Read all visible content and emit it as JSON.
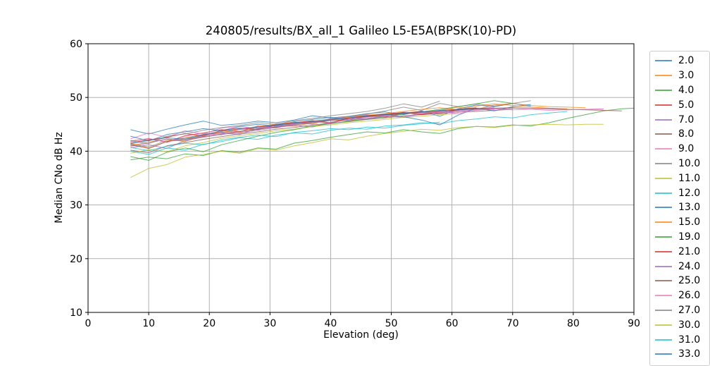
{
  "chart_data": {
    "type": "line",
    "title": "240805/results/BX_all_1 Galileo L5-E5A(BPSK(10)-PD)",
    "xlabel": "Elevation (deg)",
    "ylabel": "Median CNo dB Hz",
    "xlim": [
      0,
      90
    ],
    "ylim": [
      10,
      60
    ],
    "x_ticks": [
      0,
      10,
      20,
      30,
      40,
      50,
      60,
      70,
      80,
      90
    ],
    "y_ticks": [
      10,
      20,
      30,
      40,
      50,
      60
    ],
    "grid": true,
    "grid_color": "#b0b0b0",
    "spine_color": "#000000",
    "line_alpha": 0.75,
    "line_width": 1,
    "legend_position": "right-outside",
    "x": [
      7,
      10,
      13,
      16,
      19,
      22,
      25,
      28,
      31,
      34,
      37,
      40,
      43,
      46,
      49,
      52,
      55,
      58,
      61,
      64,
      67,
      70,
      73,
      76,
      79,
      82,
      85,
      88,
      90
    ],
    "series": [
      {
        "name": "2.0",
        "color": "#1f77b4",
        "y": [
          44.0,
          43.2,
          44.1,
          44.9,
          45.6,
          44.8,
          45.1,
          45.6,
          45.3,
          45.8,
          46.6,
          46.2,
          46.5,
          47.0,
          47.3,
          46.8,
          47.5,
          46.5,
          47.9,
          48.6,
          48.3,
          48.9,
          48.4
        ]
      },
      {
        "name": "3.0",
        "color": "#ff7f0e",
        "y": [
          41.5,
          40.6,
          41.8,
          42.5,
          43.1,
          43.6,
          43.3,
          44.5,
          44.9,
          44.6,
          45.3,
          45.9,
          45.6,
          46.4,
          46.8,
          47.2,
          46.9,
          47.6,
          48.2,
          47.8,
          48.6,
          48.9,
          48.5,
          48.3,
          48.2,
          48.1
        ]
      },
      {
        "name": "4.0",
        "color": "#2ca02c",
        "y": [
          38.4,
          38.9,
          38.6,
          39.5,
          39.2,
          40.1,
          39.8,
          40.6,
          40.4,
          41.5,
          42.0,
          42.6,
          43.1,
          43.6,
          43.4,
          44.0,
          43.6,
          43.3,
          44.2,
          44.6,
          44.5,
          44.9,
          44.7,
          45.3,
          46.1,
          46.8,
          47.5,
          47.9,
          48.0
        ]
      },
      {
        "name": "5.0",
        "color": "#d62728",
        "y": [
          41.9,
          42.3,
          41.7,
          42.9,
          43.4,
          44.0,
          43.6,
          44.7,
          44.4,
          45.2,
          45.7,
          45.3,
          46.2,
          46.6,
          46.3,
          47.1,
          47.4,
          47.0,
          47.8,
          48.1
        ]
      },
      {
        "name": "7.0",
        "color": "#9467bd",
        "y": [
          40.6,
          41.2,
          40.5,
          42.0,
          42.6,
          43.1,
          43.5,
          43.9,
          44.4,
          44.8,
          44.5,
          45.4,
          45.8,
          46.1,
          46.5,
          46.3,
          46.9,
          47.2,
          47.5,
          47.7,
          47.9,
          48.1
        ]
      },
      {
        "name": "8.0",
        "color": "#8c564b",
        "y": [
          40.2,
          39.7,
          41.0,
          41.6,
          42.2,
          42.7,
          43.2,
          43.6,
          44.1,
          44.4,
          44.9,
          45.2,
          45.5,
          45.9,
          46.2,
          46.6,
          46.8,
          47.0,
          47.3,
          47.4,
          47.6,
          47.8
        ]
      },
      {
        "name": "9.0",
        "color": "#e377c2",
        "y": [
          42.3,
          43.4,
          42.6,
          43.8,
          43.2,
          44.3,
          44.6,
          44.2,
          45.1,
          45.4,
          45.0,
          46.1,
          46.4,
          46.8,
          46.5,
          47.3,
          47.0,
          47.5,
          47.2,
          47.9,
          47.6,
          48.0,
          47.8,
          47.9,
          47.7,
          47.8,
          47.8
        ]
      },
      {
        "name": "10.0",
        "color": "#7f7f7f",
        "y": [
          41.3,
          40.8,
          42.0,
          42.4,
          43.0,
          43.4,
          44.0,
          44.3,
          44.8,
          45.1,
          45.6,
          46.0,
          46.4,
          46.9,
          47.5,
          48.2,
          47.6,
          48.9,
          48.3,
          48.8,
          48.4,
          48.9,
          49.4
        ]
      },
      {
        "name": "11.0",
        "color": "#bcbd22",
        "y": [
          39.6,
          40.3,
          39.9,
          41.0,
          41.6,
          42.4,
          42.9,
          43.3,
          43.8,
          44.1,
          44.6,
          44.9,
          45.3,
          45.6,
          45.9,
          46.3,
          46.5,
          46.8,
          47.0
        ]
      },
      {
        "name": "12.0",
        "color": "#17becf",
        "y": [
          40.0,
          39.4,
          40.6,
          40.2,
          41.3,
          41.8,
          42.5,
          42.2,
          43.0,
          43.4,
          43.2,
          43.9,
          44.3,
          44.1,
          44.7,
          44.9,
          45.3,
          45.1,
          45.7,
          46.0,
          46.4,
          46.2,
          46.8,
          47.1,
          47.4
        ]
      },
      {
        "name": "13.0",
        "color": "#1f77b4",
        "y": [
          42.8,
          41.9,
          43.1,
          43.6,
          44.2,
          43.8,
          44.6,
          45.0,
          44.7,
          45.5,
          45.9,
          46.3,
          45.8,
          46.6,
          46.9,
          46.4,
          45.8,
          44.9,
          46.7,
          48.0,
          47.5,
          48.3,
          48.7
        ]
      },
      {
        "name": "15.0",
        "color": "#ff7f0e",
        "y": [
          41.0,
          41.7,
          42.2,
          41.8,
          42.9,
          43.5,
          44.1,
          44.6,
          45.0,
          45.4,
          45.1,
          45.9,
          46.3,
          46.7,
          47.0,
          47.4,
          47.8,
          48.1,
          47.7,
          48.4,
          48.8,
          48.5,
          48.2,
          48.0,
          47.9
        ]
      },
      {
        "name": "19.0",
        "color": "#2ca02c",
        "y": [
          39.0,
          38.3,
          39.8,
          40.6,
          39.9,
          41.2,
          42.0,
          42.8,
          43.5,
          44.0,
          44.7,
          45.1,
          45.6,
          46.0,
          46.4,
          46.9,
          47.3,
          47.8,
          48.3,
          48.8,
          49.4,
          48.9
        ]
      },
      {
        "name": "21.0",
        "color": "#d62728",
        "y": [
          41.6,
          42.1,
          42.6,
          43.3,
          42.8,
          43.9,
          44.3,
          44.0,
          44.9,
          45.3,
          45.6,
          45.2,
          46.1,
          46.5,
          46.9,
          47.2,
          46.8,
          47.4,
          47.7,
          48.0,
          47.8
        ]
      },
      {
        "name": "24.0",
        "color": "#9467bd",
        "y": [
          40.9,
          41.5,
          42.3,
          41.9,
          43.0,
          43.4,
          43.1,
          44.2,
          44.6,
          45.0,
          45.4,
          45.8,
          46.2,
          45.9,
          46.7,
          47.0,
          47.3,
          47.1,
          47.6,
          47.9,
          48.2
        ]
      },
      {
        "name": "25.0",
        "color": "#8c564b",
        "y": [
          41.2,
          40.5,
          41.8,
          42.2,
          42.7,
          43.2,
          43.7,
          44.1,
          44.5,
          44.9,
          45.3,
          45.7,
          46.0,
          46.4,
          46.7,
          47.0,
          47.2,
          47.5,
          47.7,
          47.9,
          48.0,
          48.1,
          48.0,
          47.9,
          47.8,
          47.7,
          47.6,
          47.5
        ]
      },
      {
        "name": "26.0",
        "color": "#e377c2",
        "y": [
          41.8,
          42.4,
          41.6,
          42.8,
          43.3,
          43.0,
          44.1,
          44.5,
          44.3,
          45.1,
          45.5,
          45.2,
          46.0,
          46.3,
          46.6,
          46.4,
          47.1,
          47.3,
          47.0,
          47.6,
          47.9,
          47.7,
          47.8,
          47.6,
          47.7,
          47.8,
          47.9
        ]
      },
      {
        "name": "27.0",
        "color": "#7f7f7f",
        "y": [
          42.0,
          41.4,
          42.8,
          43.2,
          43.9,
          44.4,
          44.8,
          45.3,
          45.0,
          45.7,
          46.1,
          46.6,
          47.0,
          47.4,
          48.0,
          48.8,
          48.2,
          49.3
        ]
      },
      {
        "name": "30.0",
        "color": "#bcbd22",
        "y": [
          35.1,
          36.8,
          37.5,
          38.9,
          39.4,
          40.0,
          39.6,
          40.5,
          40.2,
          41.0,
          41.6,
          42.3,
          42.1,
          42.8,
          43.3,
          43.7,
          44.1,
          43.9,
          44.4,
          44.6,
          44.4,
          44.8,
          44.9,
          45.0,
          44.9,
          45.0,
          45.0
        ]
      },
      {
        "name": "31.0",
        "color": "#17becf",
        "y": [
          40.7,
          40.1,
          40.9,
          41.5,
          41.2,
          42.1,
          42.6,
          43.0,
          42.7,
          43.5,
          43.8,
          44.2,
          44.0,
          44.5,
          44.3,
          44.8,
          45.1,
          45.4
        ]
      },
      {
        "name": "33.0",
        "color": "#1f77b4",
        "y": [
          41.4,
          42.0,
          42.5,
          42.2,
          43.1,
          43.7,
          44.2,
          44.5,
          44.9,
          45.2,
          45.5,
          45.9,
          46.2,
          46.6,
          46.8,
          47.1,
          47.3,
          47.6,
          47.8,
          48.0
        ]
      }
    ]
  }
}
